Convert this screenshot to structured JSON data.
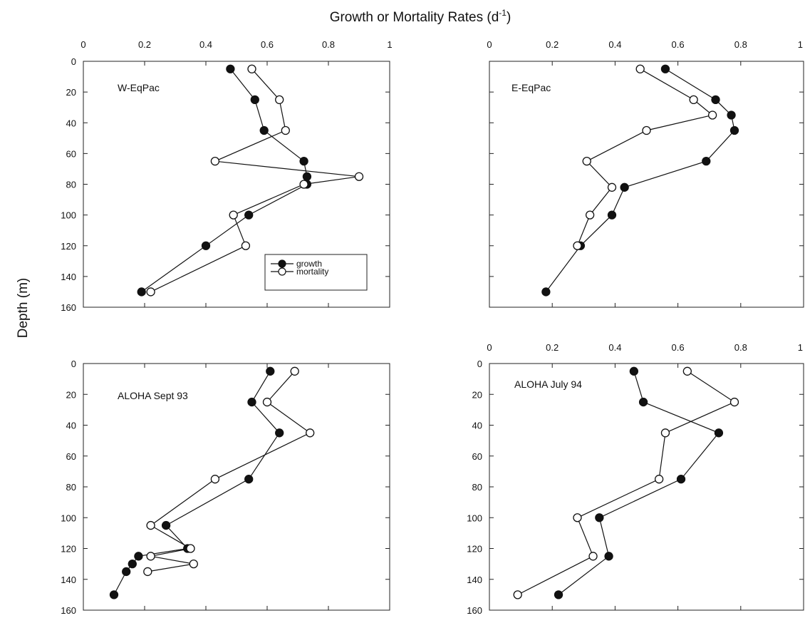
{
  "figure": {
    "xlabel": "Growth or Mortality Rates (d",
    "xlabel_sup": "-1",
    "xlabel_end": ")",
    "ylabel": "Depth (m)"
  },
  "chart_data": [
    {
      "type": "line",
      "title": "W-EqPac",
      "xlim": [
        0,
        1
      ],
      "ylim": [
        160,
        0
      ],
      "x_ticks": [
        0,
        0.2,
        0.4,
        0.6,
        0.8,
        1
      ],
      "x_tick_labels": [
        "0",
        "0.2",
        "0.4",
        "0.6",
        "0.8",
        "1"
      ],
      "y_ticks": [
        0,
        20,
        40,
        60,
        80,
        100,
        120,
        140,
        160
      ],
      "y_tick_labels": [
        "0",
        "20",
        "40",
        "60",
        "80",
        "100",
        "120",
        "140",
        "160"
      ],
      "legend": {
        "position": "bottom-right",
        "entries": [
          "growth",
          "mortality"
        ]
      },
      "series": [
        {
          "name": "growth",
          "marker": "filled",
          "points": [
            [
              0.48,
              5
            ],
            [
              0.56,
              25
            ],
            [
              0.59,
              45
            ],
            [
              0.72,
              65
            ],
            [
              0.73,
              75
            ],
            [
              0.73,
              80
            ],
            [
              0.54,
              100
            ],
            [
              0.4,
              120
            ],
            [
              0.19,
              150
            ]
          ]
        },
        {
          "name": "mortality",
          "marker": "open",
          "points": [
            [
              0.55,
              5
            ],
            [
              0.64,
              25
            ],
            [
              0.66,
              45
            ],
            [
              0.43,
              65
            ],
            [
              0.9,
              75
            ],
            [
              0.72,
              80
            ],
            [
              0.49,
              100
            ],
            [
              0.53,
              120
            ],
            [
              0.22,
              150
            ]
          ]
        }
      ]
    },
    {
      "type": "line",
      "title": "E-EqPac",
      "xlim": [
        0,
        1
      ],
      "ylim": [
        160,
        0
      ],
      "x_ticks": [
        0,
        0.2,
        0.4,
        0.6,
        0.8,
        1
      ],
      "x_tick_labels": [
        "0",
        "0.2",
        "0.4",
        "0.6",
        "0.8",
        "1"
      ],
      "y_ticks": [
        0,
        20,
        40,
        60,
        80,
        100,
        120,
        140,
        160
      ],
      "y_tick_labels": [],
      "series": [
        {
          "name": "growth",
          "marker": "filled",
          "points": [
            [
              0.56,
              5
            ],
            [
              0.72,
              25
            ],
            [
              0.77,
              35
            ],
            [
              0.78,
              45
            ],
            [
              0.69,
              65
            ],
            [
              0.43,
              82
            ],
            [
              0.39,
              100
            ],
            [
              0.29,
              120
            ],
            [
              0.18,
              150
            ]
          ]
        },
        {
          "name": "mortality",
          "marker": "open",
          "points": [
            [
              0.48,
              5
            ],
            [
              0.65,
              25
            ],
            [
              0.71,
              35
            ],
            [
              0.5,
              45
            ],
            [
              0.31,
              65
            ],
            [
              0.39,
              82
            ],
            [
              0.32,
              100
            ],
            [
              0.28,
              120
            ]
          ]
        }
      ]
    },
    {
      "type": "line",
      "title": "ALOHA Sept 93",
      "xlim": [
        0,
        1
      ],
      "ylim": [
        160,
        0
      ],
      "x_ticks": [
        0,
        0.2,
        0.4,
        0.6,
        0.8,
        1
      ],
      "x_tick_labels": [],
      "y_ticks": [
        0,
        20,
        40,
        60,
        80,
        100,
        120,
        140,
        160
      ],
      "y_tick_labels": [
        "0",
        "20",
        "40",
        "60",
        "80",
        "100",
        "120",
        "140",
        "160"
      ],
      "series": [
        {
          "name": "growth",
          "marker": "filled",
          "points": [
            [
              0.61,
              5
            ],
            [
              0.55,
              25
            ],
            [
              0.64,
              45
            ],
            [
              0.54,
              75
            ],
            [
              0.27,
              105
            ],
            [
              0.34,
              120
            ],
            [
              0.18,
              125
            ],
            [
              0.16,
              130
            ],
            [
              0.14,
              135
            ],
            [
              0.1,
              150
            ]
          ]
        },
        {
          "name": "mortality",
          "marker": "open",
          "points": [
            [
              0.69,
              5
            ],
            [
              0.6,
              25
            ],
            [
              0.74,
              45
            ],
            [
              0.43,
              75
            ],
            [
              0.22,
              105
            ],
            [
              0.35,
              120
            ],
            [
              0.22,
              125
            ],
            [
              0.36,
              130
            ],
            [
              0.21,
              135
            ]
          ]
        }
      ]
    },
    {
      "type": "line",
      "title": "ALOHA July 94",
      "xlim": [
        0,
        1
      ],
      "ylim": [
        160,
        0
      ],
      "x_ticks": [
        0,
        0.2,
        0.4,
        0.6,
        0.8,
        1
      ],
      "x_tick_labels": [
        "0",
        "0.2",
        "0.4",
        "0.6",
        "0.8",
        "1"
      ],
      "y_ticks": [
        0,
        20,
        40,
        60,
        80,
        100,
        120,
        140,
        160
      ],
      "y_tick_labels": [
        "0",
        "20",
        "40",
        "60",
        "80",
        "100",
        "120",
        "140",
        "160"
      ],
      "series": [
        {
          "name": "growth",
          "marker": "filled",
          "points": [
            [
              0.46,
              5
            ],
            [
              0.49,
              25
            ],
            [
              0.73,
              45
            ],
            [
              0.61,
              75
            ],
            [
              0.35,
              100
            ],
            [
              0.38,
              125
            ],
            [
              0.22,
              150
            ]
          ]
        },
        {
          "name": "mortality",
          "marker": "open",
          "points": [
            [
              0.63,
              5
            ],
            [
              0.78,
              25
            ],
            [
              0.56,
              45
            ],
            [
              0.54,
              75
            ],
            [
              0.28,
              100
            ],
            [
              0.33,
              125
            ],
            [
              0.09,
              150
            ]
          ]
        }
      ]
    }
  ]
}
